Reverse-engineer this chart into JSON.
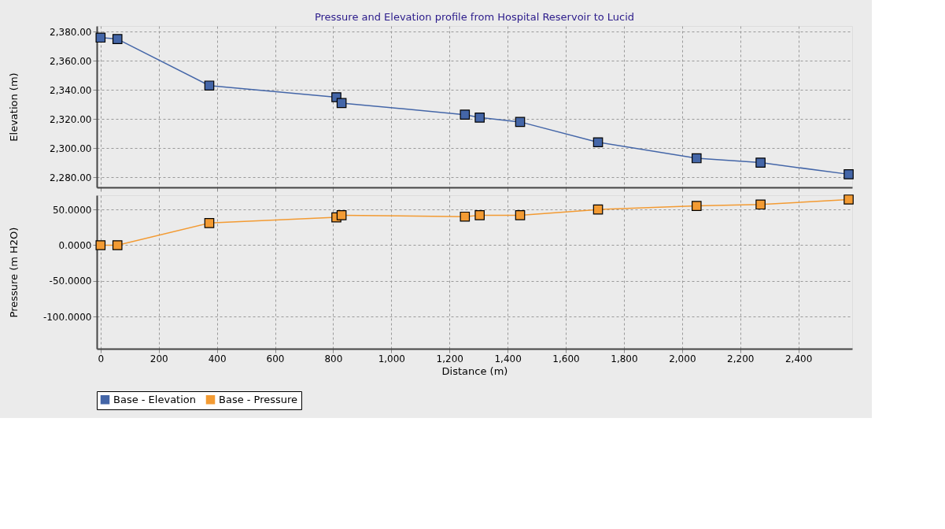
{
  "chart_data": [
    {
      "type": "line",
      "title": "Pressure and Elevation profile from Hospital Reservoir to Lucid",
      "ylabel": "Elevation (m)",
      "x": [
        0,
        58,
        374,
        811,
        829,
        1253,
        1304,
        1443,
        1711,
        2050,
        2270,
        2573
      ],
      "series": [
        {
          "name": "Base - Elevation",
          "color": "#4466a8",
          "values": [
            2376,
            2375,
            2343,
            2335,
            2331,
            2323,
            2321,
            2318,
            2304,
            2293,
            2290,
            2282
          ]
        }
      ],
      "xlim": [
        -13,
        2585
      ],
      "xticks": [
        {
          "value": 0,
          "label": null
        },
        {
          "value": 200,
          "label": null
        },
        {
          "value": 400,
          "label": null
        },
        {
          "value": 600,
          "label": null
        },
        {
          "value": 800,
          "label": null
        },
        {
          "value": 1000,
          "label": null
        },
        {
          "value": 1200,
          "label": null
        },
        {
          "value": 1400,
          "label": null
        },
        {
          "value": 1600,
          "label": null
        },
        {
          "value": 1800,
          "label": null
        },
        {
          "value": 2000,
          "label": null
        },
        {
          "value": 2200,
          "label": null
        },
        {
          "value": 2400,
          "label": null
        }
      ],
      "ylim": [
        2273,
        2384
      ],
      "yticks": [
        {
          "value": 2280,
          "label": "2,280.00"
        },
        {
          "value": 2300,
          "label": "2,300.00"
        },
        {
          "value": 2320,
          "label": "2,320.00"
        },
        {
          "value": 2340,
          "label": "2,340.00"
        },
        {
          "value": 2360,
          "label": "2,360.00"
        },
        {
          "value": 2380,
          "label": "2,380.00"
        }
      ],
      "tick_labels": "y",
      "grid": true,
      "marker": "square",
      "line_style": "solid",
      "legend": "bottom"
    },
    {
      "type": "line",
      "xlabel": "Distance (m)",
      "ylabel": "Pressure (m H2O)",
      "x": [
        0,
        58,
        374,
        811,
        829,
        1253,
        1304,
        1443,
        1711,
        2050,
        2270,
        2573
      ],
      "series": [
        {
          "name": "Base - Pressure",
          "color": "#f39b33",
          "values": [
            0,
            0,
            31,
            39,
            42,
            40,
            42,
            42,
            50,
            55,
            57,
            64
          ]
        }
      ],
      "xlim": [
        -13,
        2585
      ],
      "xticks": [
        0,
        200,
        400,
        600,
        800,
        {
          "value": 1000,
          "label": "1,000"
        },
        {
          "value": 1200,
          "label": "1,200"
        },
        {
          "value": 1400,
          "label": "1,400"
        },
        {
          "value": 1600,
          "label": "1,600"
        },
        {
          "value": 1800,
          "label": "1,800"
        },
        {
          "value": 2000,
          "label": "2,000"
        },
        {
          "value": 2200,
          "label": "2,200"
        },
        {
          "value": 2400,
          "label": "2,400"
        }
      ],
      "ylim": [
        -145,
        70
      ],
      "yticks": [
        {
          "value": -100,
          "label": "-100.0000"
        },
        {
          "value": -50,
          "label": "-50.0000"
        },
        {
          "value": 0,
          "label": "0.0000"
        },
        {
          "value": 50,
          "label": "50.0000"
        }
      ],
      "grid": true,
      "marker": "square",
      "line_style": "solid",
      "legend": "bottom"
    }
  ]
}
